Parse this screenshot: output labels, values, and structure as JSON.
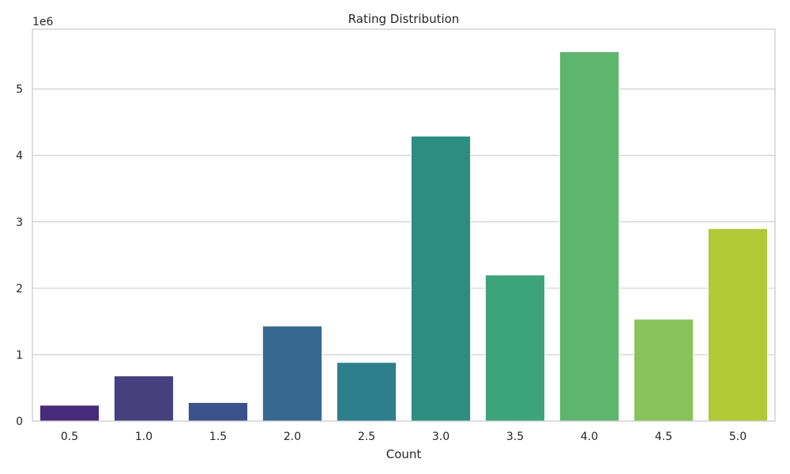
{
  "chart_data": {
    "type": "bar",
    "title": "Rating Distribution",
    "xlabel": "Count",
    "ylabel": "",
    "y_offset_label": "1e6",
    "y_scale": 1000000,
    "categories": [
      "0.5",
      "1.0",
      "1.5",
      "2.0",
      "2.5",
      "3.0",
      "3.5",
      "4.0",
      "4.5",
      "5.0"
    ],
    "values": [
      239125,
      680732,
      279252,
      1430997,
      883398,
      4291193,
      2200156,
      5561926,
      1534824,
      2898660
    ],
    "colors": [
      "#472a7a",
      "#46407f",
      "#3b528b",
      "#36688d",
      "#2e7f8e",
      "#2d8d80",
      "#3da37a",
      "#5eb66e",
      "#88c35a",
      "#b0c935"
    ],
    "ylim": [
      0,
      5900000
    ],
    "yticks": [
      0,
      1,
      2,
      3,
      4,
      5
    ],
    "grid": true
  }
}
